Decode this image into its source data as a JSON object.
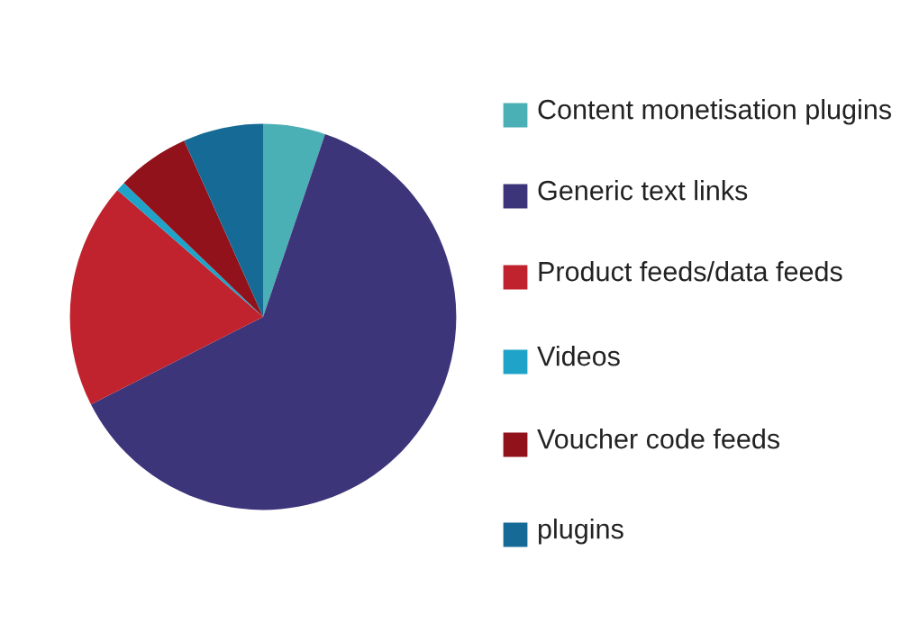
{
  "chart_data": {
    "type": "pie",
    "categories": [
      "Content monetisation plugins",
      "Generic text links",
      "Product feeds/data feeds",
      "Videos",
      "Voucher code feeds",
      "plugins"
    ],
    "values": [
      5.2,
      62.3,
      18.9,
      0.8,
      6.1,
      6.7
    ],
    "colors": [
      "#4bb0b5",
      "#3c357a",
      "#c0222e",
      "#1fa3c8",
      "#92121b",
      "#156b96"
    ],
    "legend": "right"
  }
}
